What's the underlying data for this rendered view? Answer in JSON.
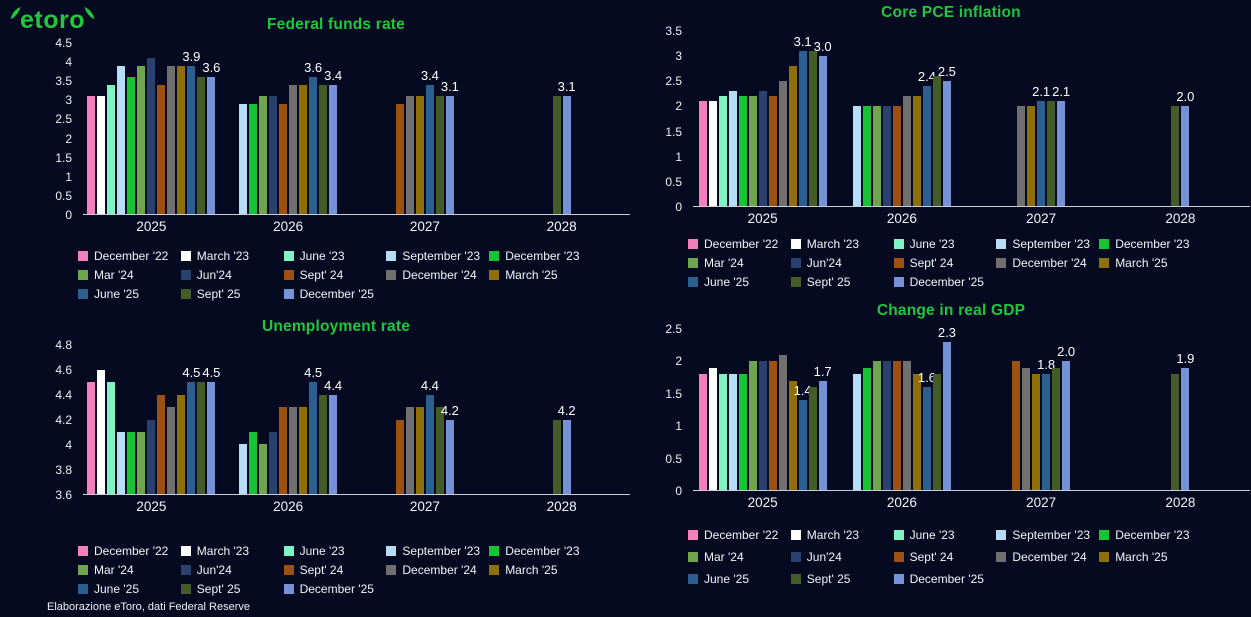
{
  "logo": {
    "text": "etoro"
  },
  "footer": {
    "source": "Elaborazione eToro, dati Federal Reserve"
  },
  "colors": {
    "background": "#050a20",
    "accent_green": "#1dc83d",
    "axis_line": "#c9cedb",
    "text": "#f2f4f8"
  },
  "series": [
    {
      "name": "December '22",
      "color": "#F57EC1"
    },
    {
      "name": "March '23",
      "color": "#FFFFFF"
    },
    {
      "name": "June '23",
      "color": "#7FF2C6"
    },
    {
      "name": "September '23",
      "color": "#B5DDF5"
    },
    {
      "name": "December '23",
      "color": "#17C534"
    },
    {
      "name": "Mar '24",
      "color": "#6FA64D"
    },
    {
      "name": "Jun'24",
      "color": "#29416F"
    },
    {
      "name": "Sept' 24",
      "color": "#9D5110"
    },
    {
      "name": "December '24",
      "color": "#707070"
    },
    {
      "name": "March '25",
      "color": "#8F6F08"
    },
    {
      "name": "June '25",
      "color": "#2A5F90"
    },
    {
      "name": "Sept' 25",
      "color": "#445C28"
    },
    {
      "name": "December '25",
      "color": "#7492D5"
    }
  ],
  "chart_data": [
    {
      "type": "bar",
      "title": "Federal funds rate",
      "categories": [
        "2025",
        "2026",
        "2027",
        "2028"
      ],
      "ylim": [
        0,
        4.5
      ],
      "yticks": [
        0,
        0.5,
        1,
        1.5,
        2,
        2.5,
        3,
        3.5,
        4,
        4.5
      ],
      "grid": false,
      "legend_position": "bottom",
      "series": [
        {
          "name": "December '22",
          "values": [
            3.1,
            null,
            null,
            null
          ]
        },
        {
          "name": "March '23",
          "values": [
            3.1,
            null,
            null,
            null
          ]
        },
        {
          "name": "June '23",
          "values": [
            3.4,
            null,
            null,
            null
          ]
        },
        {
          "name": "September '23",
          "values": [
            3.9,
            2.9,
            null,
            null
          ]
        },
        {
          "name": "December '23",
          "values": [
            3.6,
            2.9,
            null,
            null
          ]
        },
        {
          "name": "Mar '24",
          "values": [
            3.9,
            3.1,
            null,
            null
          ]
        },
        {
          "name": "Jun'24",
          "values": [
            4.1,
            3.1,
            null,
            null
          ]
        },
        {
          "name": "Sept' 24",
          "values": [
            3.4,
            2.9,
            2.9,
            null
          ]
        },
        {
          "name": "December '24",
          "values": [
            3.9,
            3.4,
            3.1,
            null
          ]
        },
        {
          "name": "March '25",
          "values": [
            3.9,
            3.4,
            3.1,
            null
          ]
        },
        {
          "name": "June '25",
          "values": [
            3.9,
            3.6,
            3.4,
            null
          ]
        },
        {
          "name": "Sept' 25",
          "values": [
            3.6,
            3.4,
            3.1,
            3.1
          ]
        },
        {
          "name": "December '25",
          "values": [
            3.6,
            3.4,
            3.1,
            3.1
          ]
        }
      ],
      "annotations": [
        {
          "category": "2025",
          "series": "June '25",
          "text": "3.9"
        },
        {
          "category": "2025",
          "series": "December '25",
          "text": "3.6"
        },
        {
          "category": "2026",
          "series": "June '25",
          "text": "3.6"
        },
        {
          "category": "2026",
          "series": "December '25",
          "text": "3.4"
        },
        {
          "category": "2027",
          "series": "June '25",
          "text": "3.4"
        },
        {
          "category": "2027",
          "series": "December '25",
          "text": "3.1"
        },
        {
          "category": "2028",
          "series": "December '25",
          "text": "3.1"
        }
      ]
    },
    {
      "type": "bar",
      "title": "Core PCE inflation",
      "categories": [
        "2025",
        "2026",
        "2027",
        "2028"
      ],
      "ylim": [
        0,
        3.5
      ],
      "yticks": [
        0,
        0.5,
        1,
        1.5,
        2,
        2.5,
        3,
        3.5
      ],
      "grid": false,
      "legend_position": "bottom",
      "series": [
        {
          "name": "December '22",
          "values": [
            2.1,
            null,
            null,
            null
          ]
        },
        {
          "name": "March '23",
          "values": [
            2.1,
            null,
            null,
            null
          ]
        },
        {
          "name": "June '23",
          "values": [
            2.2,
            null,
            null,
            null
          ]
        },
        {
          "name": "September '23",
          "values": [
            2.3,
            2.0,
            null,
            null
          ]
        },
        {
          "name": "December '23",
          "values": [
            2.2,
            2.0,
            null,
            null
          ]
        },
        {
          "name": "Mar '24",
          "values": [
            2.2,
            2.0,
            null,
            null
          ]
        },
        {
          "name": "Jun'24",
          "values": [
            2.3,
            2.0,
            null,
            null
          ]
        },
        {
          "name": "Sept' 24",
          "values": [
            2.2,
            2.0,
            null,
            null
          ]
        },
        {
          "name": "December '24",
          "values": [
            2.5,
            2.2,
            2.0,
            null
          ]
        },
        {
          "name": "March '25",
          "values": [
            2.8,
            2.2,
            2.0,
            null
          ]
        },
        {
          "name": "June '25",
          "values": [
            3.1,
            2.4,
            2.1,
            null
          ]
        },
        {
          "name": "Sept' 25",
          "values": [
            3.1,
            2.6,
            2.1,
            2.0
          ]
        },
        {
          "name": "December '25",
          "values": [
            3.0,
            2.5,
            2.1,
            2.0
          ]
        }
      ],
      "annotations": [
        {
          "category": "2025",
          "series": "June '25",
          "text": "3.1"
        },
        {
          "category": "2025",
          "series": "December '25",
          "text": "3.0"
        },
        {
          "category": "2026",
          "series": "June '25",
          "text": "2.4"
        },
        {
          "category": "2026",
          "series": "December '25",
          "text": "2.5"
        },
        {
          "category": "2027",
          "series": "June '25",
          "text": "2.1"
        },
        {
          "category": "2027",
          "series": "December '25",
          "text": "2.1"
        },
        {
          "category": "2028",
          "series": "December '25",
          "text": "2.0"
        }
      ]
    },
    {
      "type": "bar",
      "title": "Unemployment rate",
      "categories": [
        "2025",
        "2026",
        "2027",
        "2028"
      ],
      "ylim": [
        3.6,
        4.8
      ],
      "yticks": [
        3.6,
        3.8,
        4,
        4.2,
        4.4,
        4.6,
        4.8
      ],
      "grid": false,
      "legend_position": "bottom",
      "series": [
        {
          "name": "December '22",
          "values": [
            4.5,
            null,
            null,
            null
          ]
        },
        {
          "name": "March '23",
          "values": [
            4.6,
            null,
            null,
            null
          ]
        },
        {
          "name": "June '23",
          "values": [
            4.5,
            null,
            null,
            null
          ]
        },
        {
          "name": "September '23",
          "values": [
            4.1,
            4.0,
            null,
            null
          ]
        },
        {
          "name": "December '23",
          "values": [
            4.1,
            4.1,
            null,
            null
          ]
        },
        {
          "name": "Mar '24",
          "values": [
            4.1,
            4.0,
            null,
            null
          ]
        },
        {
          "name": "Jun'24",
          "values": [
            4.2,
            4.1,
            null,
            null
          ]
        },
        {
          "name": "Sept' 24",
          "values": [
            4.4,
            4.3,
            4.2,
            null
          ]
        },
        {
          "name": "December '24",
          "values": [
            4.3,
            4.3,
            4.3,
            null
          ]
        },
        {
          "name": "March '25",
          "values": [
            4.4,
            4.3,
            4.3,
            null
          ]
        },
        {
          "name": "June '25",
          "values": [
            4.5,
            4.5,
            4.4,
            null
          ]
        },
        {
          "name": "Sept' 25",
          "values": [
            4.5,
            4.4,
            4.3,
            4.2
          ]
        },
        {
          "name": "December '25",
          "values": [
            4.5,
            4.4,
            4.2,
            4.2
          ]
        }
      ],
      "annotations": [
        {
          "category": "2025",
          "series": "June '25",
          "text": "4.5"
        },
        {
          "category": "2025",
          "series": "December '25",
          "text": "4.5"
        },
        {
          "category": "2026",
          "series": "June '25",
          "text": "4.5"
        },
        {
          "category": "2026",
          "series": "December '25",
          "text": "4.4"
        },
        {
          "category": "2027",
          "series": "June '25",
          "text": "4.4"
        },
        {
          "category": "2027",
          "series": "December '25",
          "text": "4.2"
        },
        {
          "category": "2028",
          "series": "December '25",
          "text": "4.2"
        }
      ]
    },
    {
      "type": "bar",
      "title": "Change in real GDP",
      "categories": [
        "2025",
        "2026",
        "2027",
        "2028"
      ],
      "ylim": [
        0,
        2.5
      ],
      "yticks": [
        0,
        0.5,
        1,
        1.5,
        2,
        2.5
      ],
      "grid": false,
      "legend_position": "bottom",
      "series": [
        {
          "name": "December '22",
          "values": [
            1.8,
            null,
            null,
            null
          ]
        },
        {
          "name": "March '23",
          "values": [
            1.9,
            null,
            null,
            null
          ]
        },
        {
          "name": "June '23",
          "values": [
            1.8,
            null,
            null,
            null
          ]
        },
        {
          "name": "September '23",
          "values": [
            1.8,
            1.8,
            null,
            null
          ]
        },
        {
          "name": "December '23",
          "values": [
            1.8,
            1.9,
            null,
            null
          ]
        },
        {
          "name": "Mar '24",
          "values": [
            2.0,
            2.0,
            null,
            null
          ]
        },
        {
          "name": "Jun'24",
          "values": [
            2.0,
            2.0,
            null,
            null
          ]
        },
        {
          "name": "Sept' 24",
          "values": [
            2.0,
            2.0,
            2.0,
            null
          ]
        },
        {
          "name": "December '24",
          "values": [
            2.1,
            2.0,
            1.9,
            null
          ]
        },
        {
          "name": "March '25",
          "values": [
            1.7,
            1.8,
            1.8,
            null
          ]
        },
        {
          "name": "June '25",
          "values": [
            1.4,
            1.6,
            1.8,
            null
          ]
        },
        {
          "name": "Sept' 25",
          "values": [
            1.6,
            1.8,
            1.9,
            1.8
          ]
        },
        {
          "name": "December '25",
          "values": [
            1.7,
            2.3,
            2.0,
            1.9
          ]
        }
      ],
      "annotations": [
        {
          "category": "2025",
          "series": "June '25",
          "text": "1.4"
        },
        {
          "category": "2025",
          "series": "December '25",
          "text": "1.7"
        },
        {
          "category": "2026",
          "series": "June '25",
          "text": "1.6"
        },
        {
          "category": "2026",
          "series": "December '25",
          "text": "2.3"
        },
        {
          "category": "2027",
          "series": "June '25",
          "text": "1.8"
        },
        {
          "category": "2027",
          "series": "December '25",
          "text": "2.0"
        },
        {
          "category": "2028",
          "series": "December '25",
          "text": "1.9"
        }
      ]
    }
  ]
}
